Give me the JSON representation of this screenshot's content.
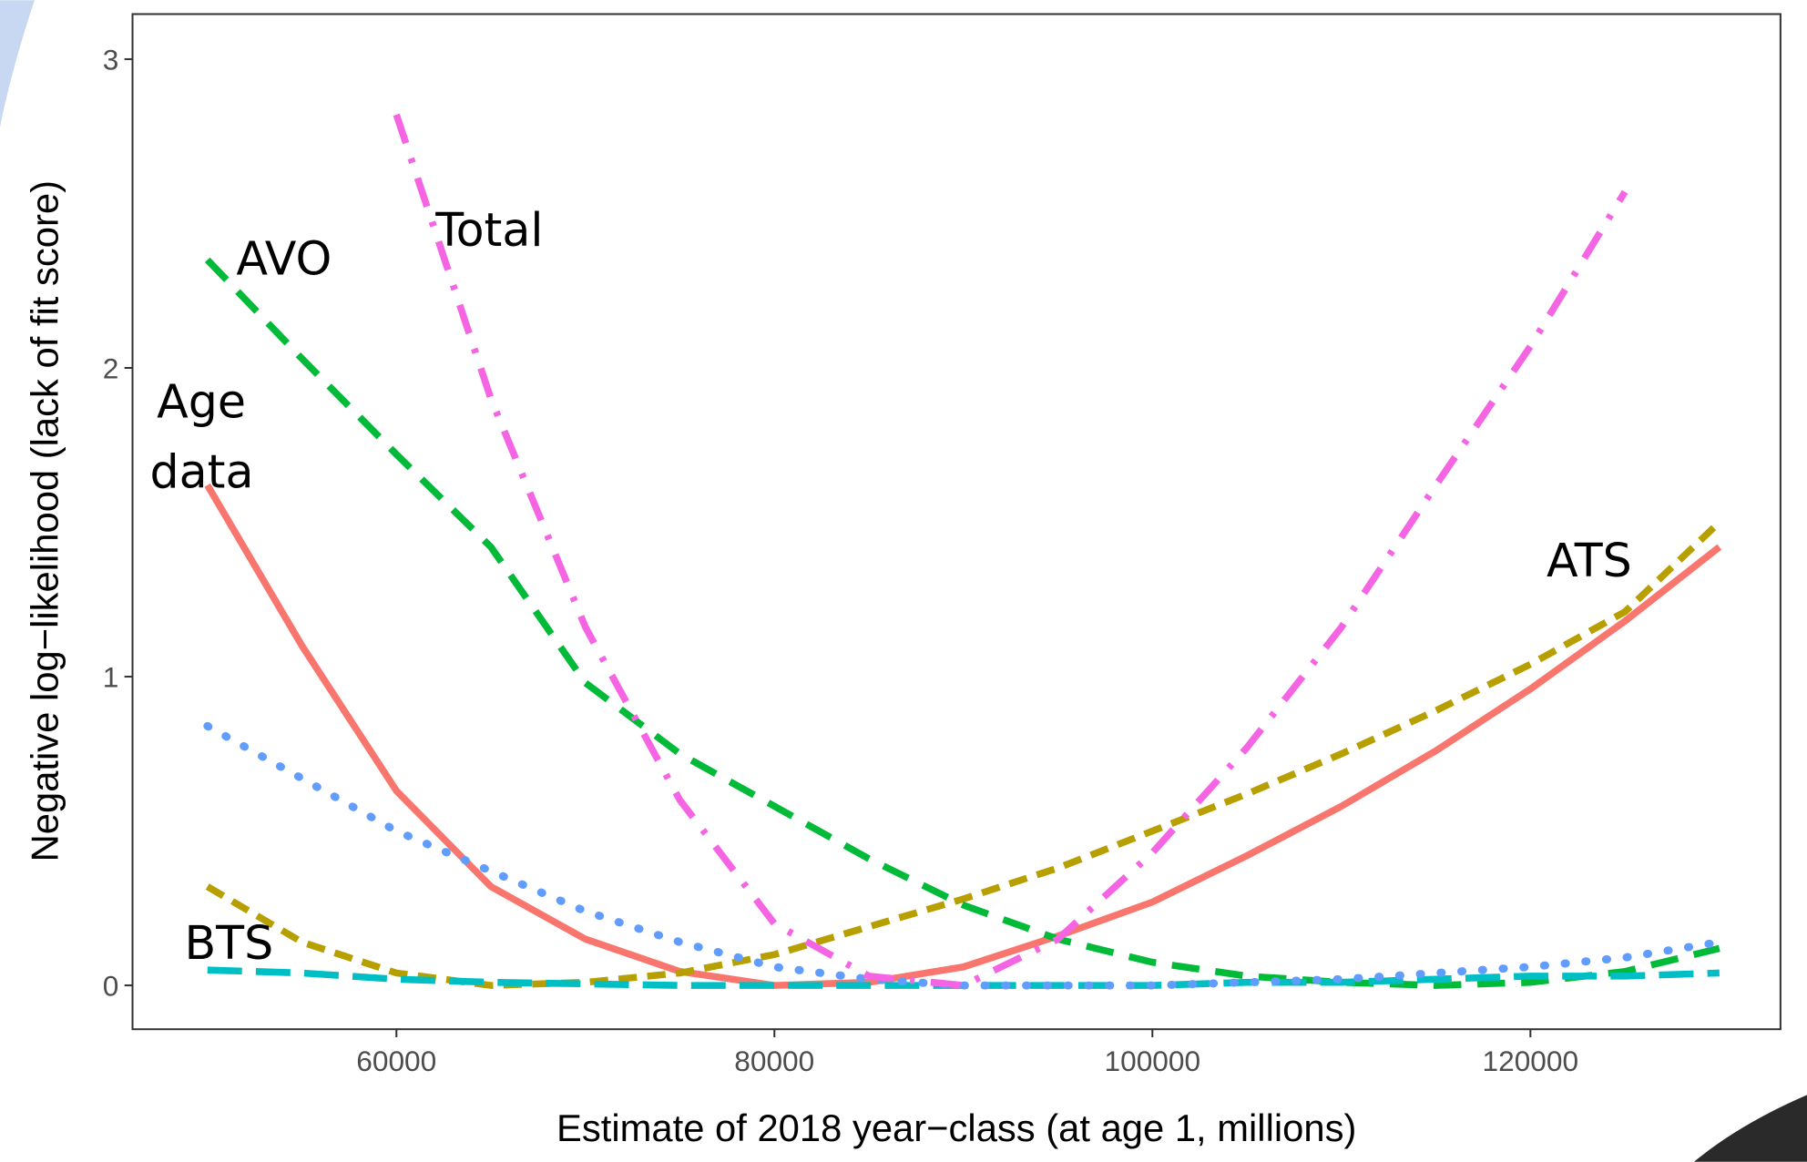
{
  "chart_data": {
    "type": "line",
    "xlabel": "Estimate of 2018 year−class (at age 1, millions)",
    "ylabel": "Negative log−likelihood (lack of fit score)",
    "x": [
      50000,
      55000,
      60000,
      65000,
      70000,
      75000,
      80000,
      85000,
      90000,
      95000,
      100000,
      105000,
      110000,
      115000,
      120000,
      125000,
      130000
    ],
    "series": [
      {
        "color": "#F8766D",
        "dash": "solid",
        "values": [
          1.62,
          1.1,
          0.63,
          0.32,
          0.15,
          0.045,
          0.0,
          0.01,
          0.06,
          0.16,
          0.27,
          0.42,
          0.58,
          0.76,
          0.96,
          1.18,
          1.42
        ]
      },
      {
        "color": "#B79F00",
        "dash": "short",
        "values": [
          0.32,
          0.14,
          0.04,
          0.0,
          0.01,
          0.04,
          0.1,
          0.19,
          0.28,
          0.38,
          0.5,
          0.62,
          0.75,
          0.89,
          1.04,
          1.21,
          1.5
        ]
      },
      {
        "color": "#00BA38",
        "dash": "long",
        "values": [
          2.35,
          2.03,
          1.72,
          1.42,
          0.98,
          0.75,
          0.58,
          0.41,
          0.26,
          0.15,
          0.075,
          0.03,
          0.01,
          0.0,
          0.01,
          0.045,
          0.12
        ]
      },
      {
        "color": "#00BFC4",
        "dash": "longer",
        "values": [
          0.05,
          0.04,
          0.02,
          0.01,
          0.005,
          0.0,
          0.0,
          0.0,
          0.0,
          0.0,
          0.0,
          0.01,
          0.01,
          0.02,
          0.03,
          0.03,
          0.04
        ]
      },
      {
        "color": "#619CFF",
        "dash": "dotted",
        "values": [
          0.84,
          0.67,
          0.5,
          0.37,
          0.24,
          0.14,
          0.06,
          0.02,
          0.0,
          0.0,
          0.0,
          0.01,
          0.02,
          0.04,
          0.06,
          0.09,
          0.14
        ]
      },
      {
        "color": "#F564E3",
        "dash": "dashdot",
        "values": [
          null,
          null,
          2.82,
          1.9,
          1.16,
          0.6,
          0.2,
          0.03,
          0.0,
          0.15,
          0.43,
          0.77,
          1.16,
          1.62,
          2.07,
          2.57,
          null
        ]
      }
    ],
    "annotations": [
      "Total",
      "AVO",
      "Age",
      "data",
      "ATS",
      "BTS"
    ],
    "xlim": [
      46037,
      133232
    ],
    "xticks": [
      60000,
      80000,
      100000,
      120000
    ],
    "ylim": [
      -0.142,
      3.146
    ],
    "yticks": [
      0,
      1,
      2,
      3
    ]
  }
}
